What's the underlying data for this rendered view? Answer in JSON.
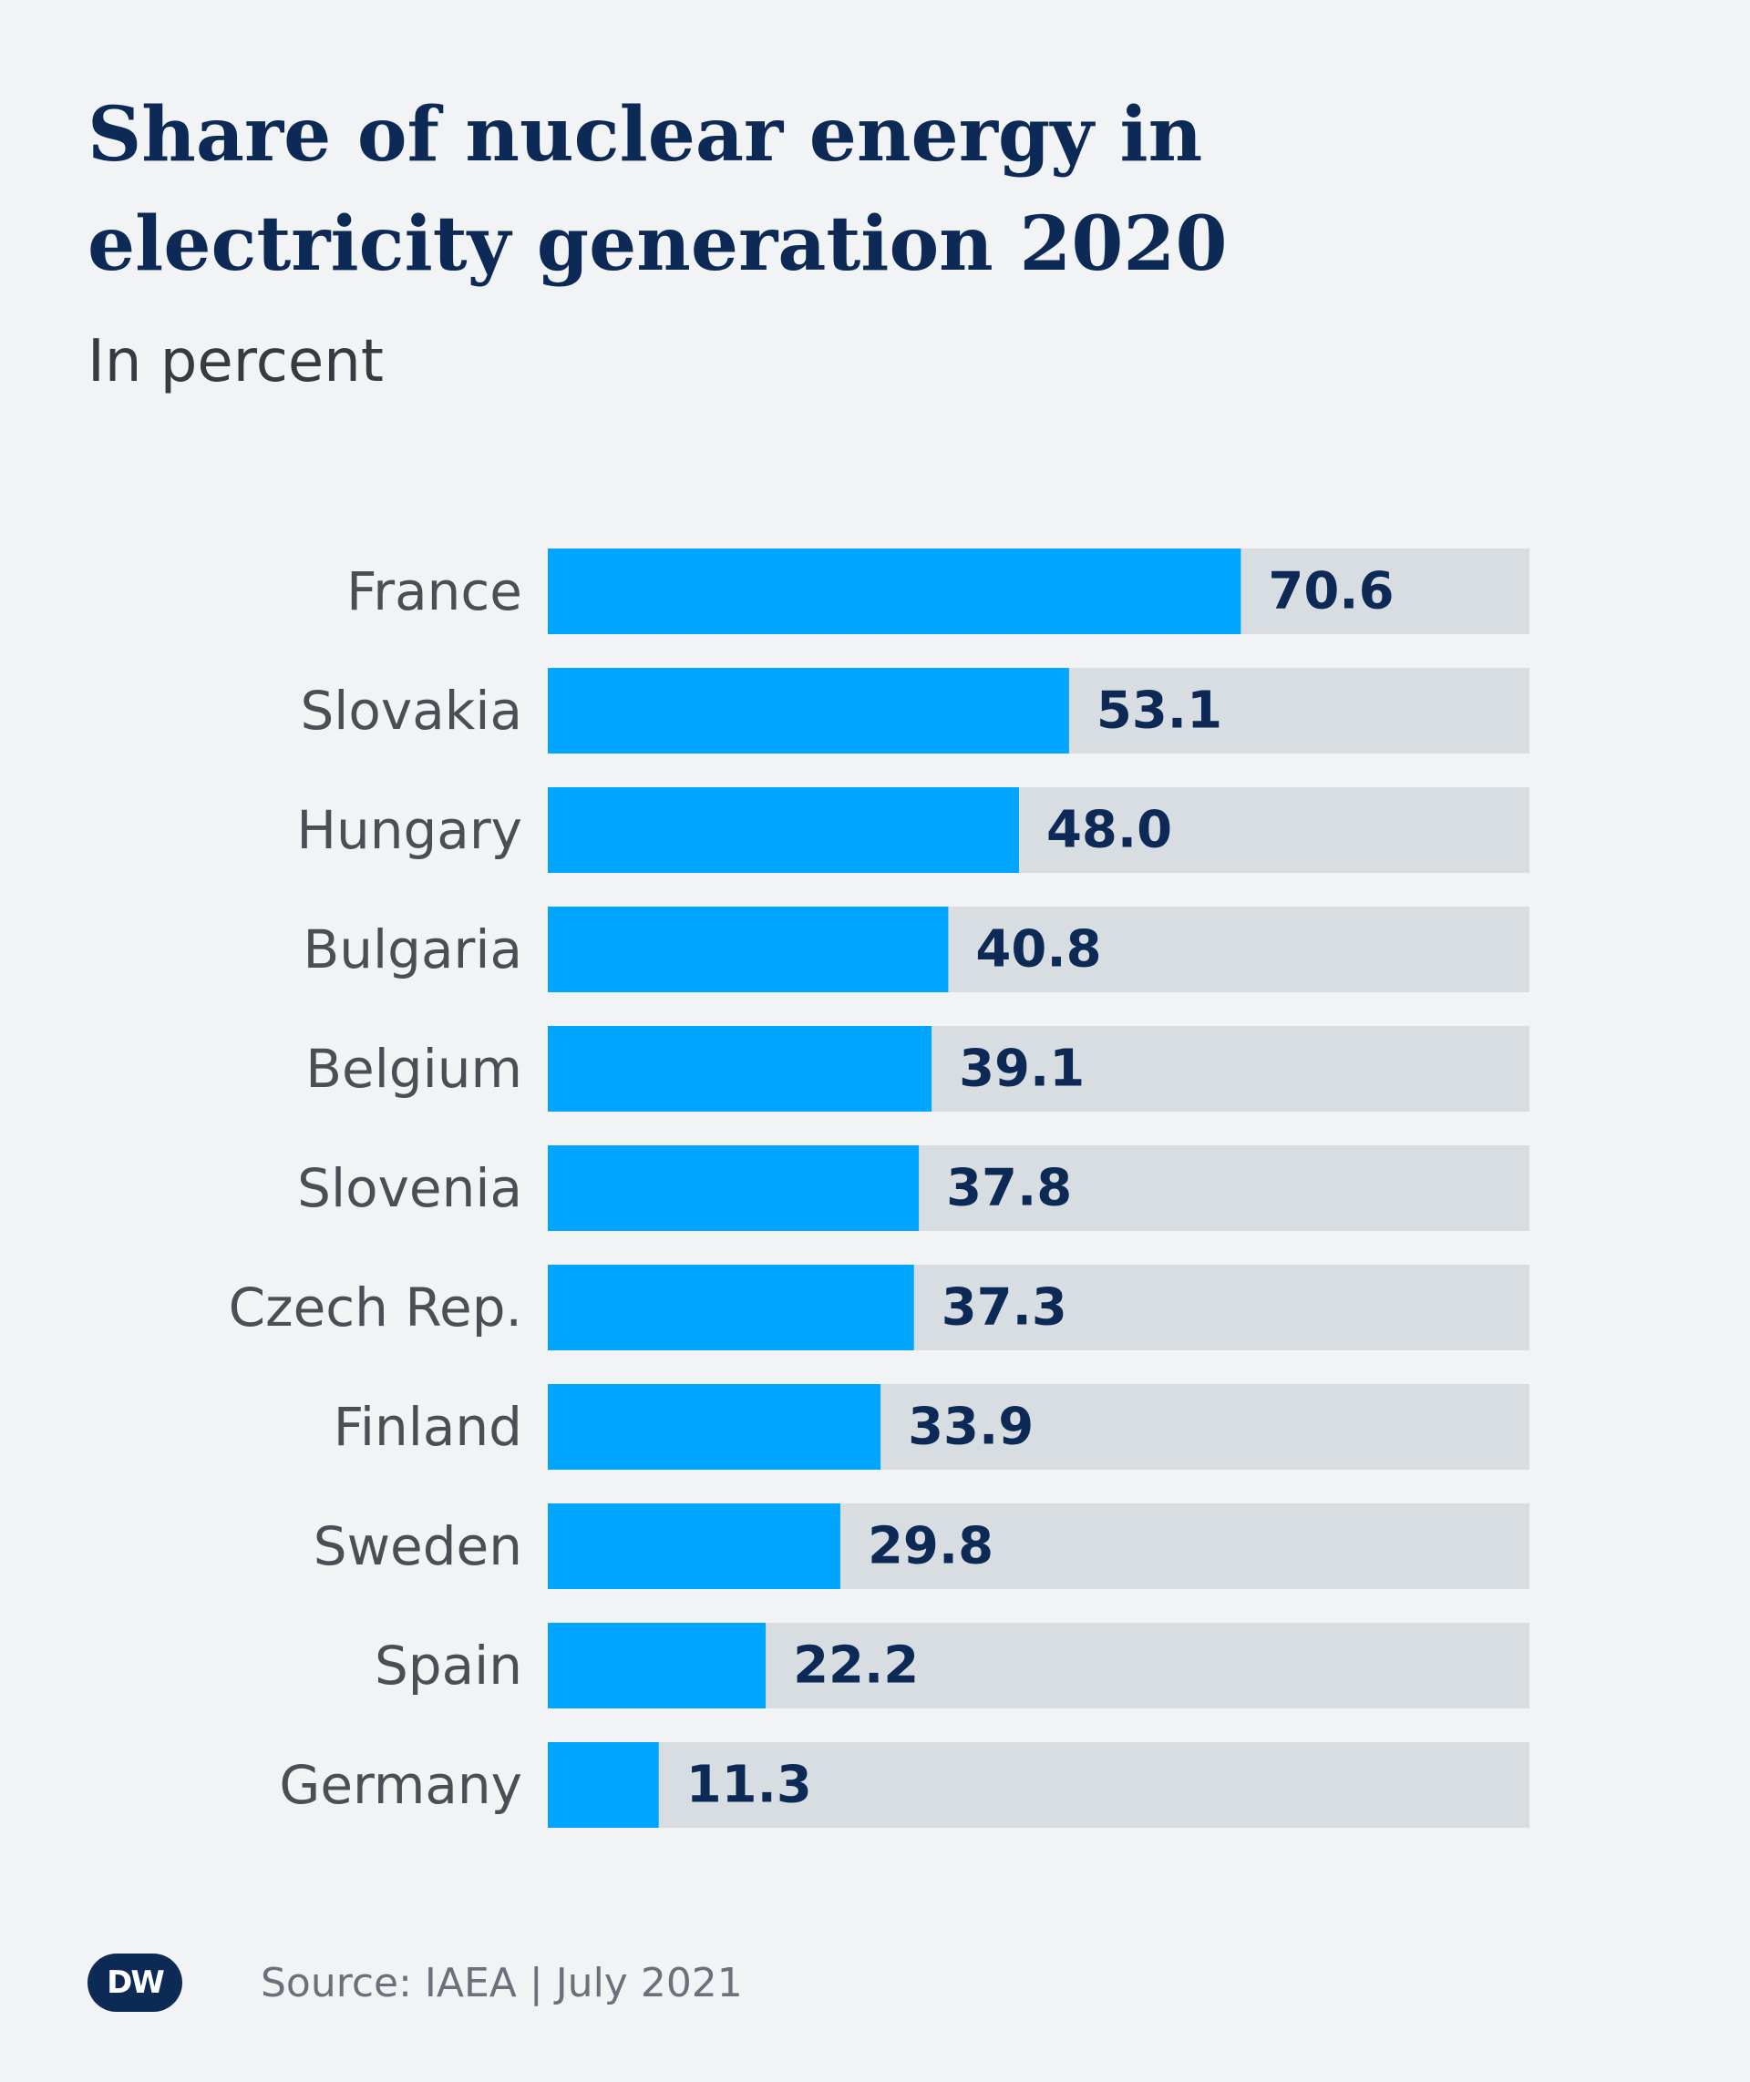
{
  "title": "Share of nuclear energy in electricity generation 2020",
  "subtitle": "In percent",
  "source": "Source: IAEA | July 2021",
  "logo_text": "DW",
  "colors": {
    "background": "#f1f3f5",
    "bar": "#00a5ff",
    "track": "#d8dde2",
    "value_text": "#0c2a55",
    "label_text": "#4a4f56",
    "title": "#0c2a55"
  },
  "chart_data": {
    "type": "bar",
    "orientation": "horizontal",
    "categories": [
      "France",
      "Slovakia",
      "Hungary",
      "Bulgaria",
      "Belgium",
      "Slovenia",
      "Czech Rep.",
      "Finland",
      "Sweden",
      "Spain",
      "Germany"
    ],
    "values": [
      70.6,
      53.1,
      48.0,
      40.8,
      39.1,
      37.8,
      37.3,
      33.9,
      29.8,
      22.2,
      11.3
    ],
    "value_labels": [
      "70.6",
      "53.1",
      "48.0",
      "40.8",
      "39.1",
      "37.8",
      "37.3",
      "33.9",
      "29.8",
      "22.2",
      "11.3"
    ],
    "xlim": [
      0,
      100
    ],
    "grid": false,
    "legend": "none"
  }
}
